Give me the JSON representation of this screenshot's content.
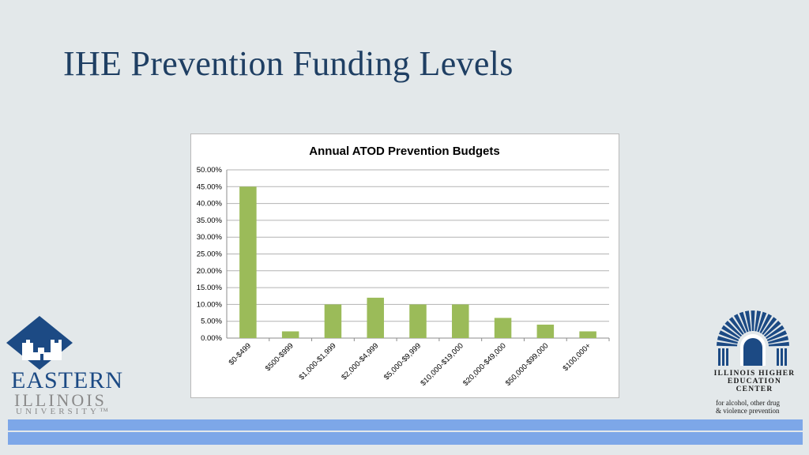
{
  "slide": {
    "title": "IHE Prevention Funding Levels"
  },
  "chart_data": {
    "type": "bar",
    "title": "Annual ATOD Prevention Budgets",
    "categories": [
      "$0-$499",
      "$500-$999",
      "$1,000-$1,999",
      "$2,000-$4,999",
      "$5,000-$9,999",
      "$10,000-$19,000",
      "$20,000-$49,000",
      "$50,000-$99,000",
      "$100,000+"
    ],
    "values": [
      45,
      2,
      10,
      12,
      10,
      10,
      6,
      4,
      2
    ],
    "ylim": [
      0,
      50
    ],
    "yticks": [
      "0.00%",
      "5.00%",
      "10.00%",
      "15.00%",
      "20.00%",
      "25.00%",
      "30.00%",
      "35.00%",
      "40.00%",
      "45.00%",
      "50.00%"
    ],
    "xlabel": "",
    "ylabel": "",
    "grid": true,
    "bar_color": "#9bbb59"
  },
  "logos": {
    "eiu": {
      "line1": "EASTERN",
      "line2": "ILLINOIS",
      "line3": "UNIVERSITY™"
    },
    "ihec": {
      "name_lines": [
        "ILLINOIS HIGHER",
        "EDUCATION",
        "CENTER"
      ],
      "sub_lines": [
        "for alcohol, other drug",
        "& violence prevention"
      ]
    }
  }
}
